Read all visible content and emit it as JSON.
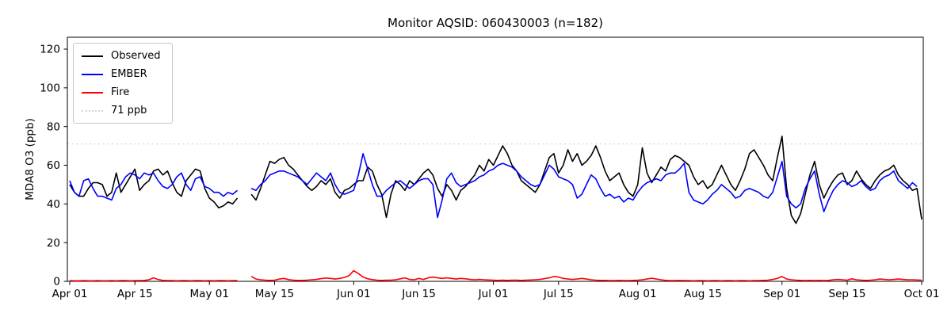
{
  "title": "Monitor AQSID: 060430003 (n=182)",
  "chart_data": {
    "type": "line",
    "title": "Monitor AQSID: 060430003 (n=182)",
    "xlabel": "",
    "ylabel": "MDA8 O3 (ppb)",
    "ylim": [
      0,
      126
    ],
    "yticks": [
      0,
      20,
      40,
      60,
      80,
      100,
      120
    ],
    "grid": false,
    "background": "#ffffff",
    "frame_color": "#000000",
    "n_days": 184,
    "x_start": "Apr 01",
    "x_end": "Oct 01",
    "x_ticks": [
      {
        "day": 0,
        "label": "Apr 01"
      },
      {
        "day": 14,
        "label": "Apr 15"
      },
      {
        "day": 30,
        "label": "May 01"
      },
      {
        "day": 44,
        "label": "May 15"
      },
      {
        "day": 61,
        "label": "Jun 01"
      },
      {
        "day": 75,
        "label": "Jun 15"
      },
      {
        "day": 91,
        "label": "Jul 01"
      },
      {
        "day": 105,
        "label": "Jul 15"
      },
      {
        "day": 122,
        "label": "Aug 01"
      },
      {
        "day": 136,
        "label": "Aug 15"
      },
      {
        "day": 153,
        "label": "Sep 01"
      },
      {
        "day": 167,
        "label": "Sep 15"
      },
      {
        "day": 183,
        "label": "Oct 01"
      }
    ],
    "threshold": {
      "value": 71,
      "label": "71 ppb",
      "color": "#d3d3d3",
      "style": "dotted"
    },
    "legend": {
      "position": "upper left",
      "items": [
        "Observed",
        "EMBER",
        "Fire",
        "71 ppb"
      ]
    },
    "series": [
      {
        "name": "Observed",
        "color": "#000000",
        "values": [
          50,
          46,
          44,
          44,
          48,
          51,
          51,
          50,
          44,
          46,
          56,
          46,
          50,
          54,
          58,
          47,
          50,
          52,
          57,
          58,
          55,
          57,
          51,
          46,
          44,
          52,
          55,
          58,
          57,
          48,
          43,
          41,
          38,
          39,
          41,
          40,
          43,
          null,
          null,
          45,
          42,
          48,
          55,
          62,
          61,
          63,
          64,
          60,
          58,
          55,
          52,
          49,
          47,
          49,
          52,
          50,
          53,
          46,
          43,
          47,
          48,
          50,
          52,
          52,
          59,
          57,
          50,
          45,
          33,
          45,
          52,
          50,
          47,
          52,
          50,
          53,
          56,
          58,
          55,
          48,
          44,
          50,
          47,
          42,
          47,
          49,
          52,
          55,
          60,
          57,
          63,
          60,
          65,
          70,
          66,
          60,
          57,
          52,
          50,
          48,
          46,
          50,
          57,
          64,
          66,
          56,
          60,
          68,
          62,
          66,
          60,
          62,
          65,
          70,
          64,
          57,
          52,
          54,
          56,
          50,
          46,
          44,
          50,
          69,
          56,
          51,
          55,
          59,
          57,
          63,
          65,
          64,
          62,
          60,
          54,
          50,
          52,
          48,
          50,
          55,
          60,
          55,
          50,
          47,
          52,
          58,
          66,
          68,
          64,
          60,
          55,
          52,
          64,
          75,
          48,
          34,
          30,
          35,
          45,
          55,
          62,
          50,
          43,
          48,
          52,
          55,
          56,
          50,
          52,
          57,
          53,
          50,
          48,
          52,
          55,
          57,
          58,
          60,
          55,
          52,
          50,
          47,
          48,
          32
        ]
      },
      {
        "name": "EMBER",
        "color": "#0000ff",
        "values": [
          52,
          46,
          44,
          52,
          53,
          48,
          44,
          44,
          43,
          42,
          48,
          50,
          54,
          56,
          55,
          53,
          56,
          55,
          56,
          52,
          49,
          48,
          50,
          54,
          56,
          50,
          47,
          53,
          54,
          49,
          48,
          46,
          46,
          44,
          46,
          45,
          47,
          null,
          null,
          48,
          47,
          50,
          52,
          55,
          56,
          57,
          57,
          56,
          55,
          54,
          52,
          50,
          53,
          56,
          54,
          52,
          56,
          50,
          46,
          45,
          46,
          47,
          55,
          66,
          58,
          50,
          44,
          44,
          47,
          49,
          51,
          52,
          50,
          48,
          50,
          52,
          53,
          53,
          50,
          33,
          42,
          53,
          56,
          51,
          49,
          50,
          51,
          52,
          54,
          55,
          57,
          58,
          60,
          61,
          60,
          59,
          57,
          54,
          52,
          50,
          49,
          50,
          55,
          60,
          58,
          54,
          53,
          52,
          50,
          43,
          45,
          50,
          55,
          53,
          48,
          44,
          45,
          43,
          44,
          41,
          43,
          42,
          46,
          49,
          51,
          52,
          53,
          52,
          55,
          56,
          56,
          58,
          61,
          46,
          42,
          41,
          40,
          42,
          45,
          47,
          50,
          48,
          46,
          43,
          44,
          47,
          48,
          47,
          46,
          44,
          43,
          46,
          54,
          62,
          44,
          40,
          38,
          40,
          48,
          53,
          57,
          45,
          36,
          42,
          47,
          50,
          52,
          51,
          49,
          50,
          52,
          49,
          47,
          48,
          52,
          54,
          55,
          57,
          52,
          50,
          48,
          51,
          49,
          null
        ]
      },
      {
        "name": "Fire",
        "color": "#ff0000",
        "values": [
          0.4,
          0.3,
          0.3,
          0.4,
          0.3,
          0.3,
          0.4,
          0.3,
          0.3,
          0.4,
          0.3,
          0.4,
          0.4,
          0.3,
          0.4,
          0.4,
          0.5,
          0.8,
          1.8,
          1.0,
          0.5,
          0.4,
          0.4,
          0.3,
          0.4,
          0.4,
          0.3,
          0.4,
          0.4,
          0.3,
          0.4,
          0.3,
          0.4,
          0.4,
          0.3,
          0.4,
          0.4,
          null,
          null,
          2.6,
          1.2,
          0.8,
          0.6,
          0.5,
          0.6,
          1.2,
          1.5,
          0.9,
          0.6,
          0.5,
          0.5,
          0.6,
          0.8,
          1.0,
          1.4,
          1.7,
          1.5,
          1.2,
          1.5,
          2.0,
          3.0,
          5.5,
          4.0,
          2.2,
          1.3,
          0.9,
          0.6,
          0.5,
          0.6,
          0.6,
          0.8,
          1.3,
          1.8,
          1.0,
          0.8,
          1.5,
          1.0,
          1.8,
          2.2,
          1.8,
          1.5,
          1.8,
          1.5,
          1.2,
          1.5,
          1.3,
          1.0,
          0.8,
          1.0,
          0.8,
          0.7,
          0.6,
          0.5,
          0.6,
          0.5,
          0.6,
          0.6,
          0.5,
          0.6,
          0.7,
          0.8,
          1.0,
          1.4,
          1.8,
          2.5,
          2.2,
          1.5,
          1.2,
          1.0,
          1.2,
          1.5,
          1.2,
          0.8,
          0.6,
          0.5,
          0.5,
          0.4,
          0.4,
          0.5,
          0.4,
          0.4,
          0.5,
          0.6,
          0.8,
          1.2,
          1.6,
          1.2,
          0.8,
          0.5,
          0.4,
          0.4,
          0.5,
          0.4,
          0.4,
          0.3,
          0.4,
          0.4,
          0.3,
          0.4,
          0.4,
          0.3,
          0.4,
          0.4,
          0.3,
          0.4,
          0.4,
          0.3,
          0.4,
          0.4,
          0.5,
          0.6,
          1.0,
          1.5,
          2.5,
          1.2,
          0.8,
          0.6,
          0.5,
          0.4,
          0.5,
          0.4,
          0.5,
          0.4,
          0.5,
          0.8,
          1.0,
          0.8,
          0.6,
          1.3,
          0.8,
          0.6,
          0.5,
          0.6,
          0.8,
          1.2,
          1.0,
          0.8,
          1.0,
          1.2,
          1.0,
          0.8,
          0.8,
          0.7,
          0.6
        ]
      }
    ]
  }
}
